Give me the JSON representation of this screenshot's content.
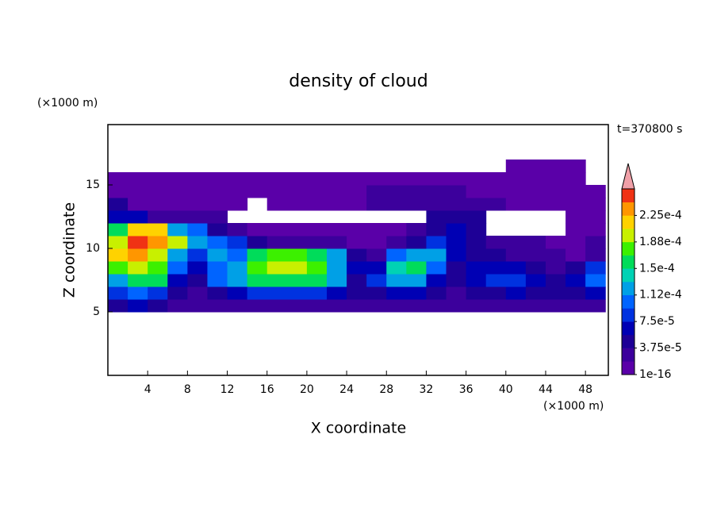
{
  "chart_data": {
    "type": "contour",
    "title": "density of cloud",
    "x_label": "X coordinate",
    "y_label": "Z coordinate",
    "x_unit": "(×1000 m)",
    "y_unit": "(×1000 m)",
    "annotation": "t=370800 s",
    "xlim": [
      0,
      50.3
    ],
    "ylim": [
      0,
      19.75
    ],
    "xticks": [
      4,
      8,
      12,
      16,
      20,
      24,
      28,
      32,
      36,
      40,
      44,
      48
    ],
    "yticks": [
      5,
      10,
      15
    ],
    "x": [
      1,
      3,
      5,
      7,
      9,
      11,
      13,
      15,
      17,
      19,
      21,
      23,
      25,
      27,
      29,
      31,
      33,
      35,
      37,
      39,
      41,
      43,
      45,
      47,
      49
    ],
    "z": [
      5.5,
      6.5,
      7.5,
      8.5,
      9.5,
      10.5,
      11.5,
      12.5,
      13.5,
      14.5,
      15.5,
      16.5
    ],
    "field": [
      [
        5e-05,
        6e-05,
        5e-05,
        2e-05,
        2e-05,
        2e-05,
        3e-05,
        2e-05,
        2e-05,
        2e-05,
        2e-05,
        2e-05,
        2e-05,
        2e-05,
        2e-05,
        2e-05,
        2e-05,
        2e-05,
        2e-05,
        2e-05,
        3e-05,
        3e-05,
        3e-05,
        3e-05,
        3e-05
      ],
      [
        9e-05,
        0.0001,
        9e-05,
        4e-05,
        3e-05,
        5e-05,
        6e-05,
        8e-05,
        9e-05,
        9e-05,
        8e-05,
        7e-05,
        4e-05,
        5e-05,
        7e-05,
        7e-05,
        4e-05,
        3e-05,
        4e-05,
        5e-05,
        6e-05,
        5e-05,
        4e-05,
        5e-05,
        6e-05
      ],
      [
        0.00013,
        0.00016,
        0.00015,
        6e-05,
        5e-05,
        0.0001,
        0.00013,
        0.00015,
        0.00016,
        0.00016,
        0.00015,
        0.00012,
        5e-05,
        8e-05,
        0.00013,
        0.00012,
        7e-05,
        4e-05,
        6e-05,
        8e-05,
        9e-05,
        7e-05,
        4e-05,
        7e-05,
        0.00011
      ],
      [
        0.00018,
        0.0002,
        0.00018,
        0.0001,
        6e-05,
        0.00011,
        0.00012,
        0.00017,
        0.00019,
        0.0002,
        0.00018,
        0.00013,
        6e-05,
        7e-05,
        0.00014,
        0.00015,
        0.0001,
        5e-05,
        6e-05,
        7e-05,
        6e-05,
        4e-05,
        3e-05,
        5e-05,
        8e-05
      ],
      [
        0.00022,
        0.00023,
        0.0002,
        0.00013,
        9e-05,
        0.00012,
        0.0001,
        0.00015,
        0.00017,
        0.00017,
        0.00016,
        0.00012,
        5e-05,
        3e-05,
        0.0001,
        0.00013,
        0.00012,
        6e-05,
        4e-05,
        5e-05,
        3e-05,
        2e-05,
        3e-05,
        1e-05,
        3e-05
      ],
      [
        0.0002,
        0.00025,
        0.00023,
        0.00019,
        0.00013,
        0.00011,
        8e-05,
        5e-05,
        3e-05,
        2e-05,
        2e-05,
        2e-05,
        1e-05,
        1e-05,
        2e-05,
        4e-05,
        8e-05,
        6e-05,
        5e-05,
        3e-05,
        3e-05,
        2e-05,
        1e-05,
        1e-05,
        2e-05
      ],
      [
        0.00015,
        0.00022,
        0.00022,
        0.00012,
        0.0001,
        5e-05,
        3e-05,
        1e-05,
        1e-05,
        1e-05,
        1e-05,
        1e-05,
        1e-05,
        1e-05,
        1e-05,
        2e-05,
        5e-05,
        6e-05,
        4e-05,
        null,
        null,
        null,
        null,
        1e-05,
        1e-05
      ],
      [
        6e-05,
        6e-05,
        2e-05,
        2e-05,
        2e-05,
        2e-05,
        null,
        null,
        null,
        null,
        null,
        null,
        null,
        null,
        null,
        null,
        4e-05,
        4e-05,
        4e-05,
        null,
        null,
        null,
        null,
        1e-05,
        1e-05
      ],
      [
        4e-05,
        1e-05,
        1e-05,
        1e-05,
        1e-05,
        1e-05,
        1e-05,
        null,
        1e-05,
        1e-05,
        1e-05,
        1e-05,
        1e-05,
        3e-05,
        3e-05,
        3e-05,
        3e-05,
        3e-05,
        3e-05,
        2e-05,
        1e-05,
        1e-05,
        1e-05,
        1e-05,
        1e-05
      ],
      [
        1e-05,
        1e-05,
        1e-05,
        1e-05,
        1e-05,
        1e-05,
        1e-05,
        1e-05,
        1e-05,
        1e-05,
        1e-05,
        1e-05,
        1e-05,
        3e-05,
        3e-05,
        2e-05,
        3e-05,
        3e-05,
        1e-05,
        1e-05,
        1e-05,
        1e-05,
        1e-05,
        1e-05,
        1e-05
      ],
      [
        1e-05,
        1e-05,
        1e-05,
        1e-05,
        1e-05,
        1e-05,
        1e-05,
        1e-05,
        1e-05,
        1e-05,
        1e-05,
        1e-05,
        1e-05,
        1e-05,
        1e-05,
        1e-05,
        1e-05,
        1e-05,
        1e-05,
        1e-05,
        1e-05,
        1e-05,
        1e-05,
        1e-05,
        null
      ],
      [
        null,
        null,
        null,
        null,
        null,
        null,
        null,
        null,
        null,
        null,
        null,
        null,
        null,
        null,
        null,
        null,
        null,
        null,
        null,
        null,
        1e-05,
        1e-05,
        1e-05,
        1e-05,
        null
      ]
    ],
    "colorbar": {
      "levels": [
        1e-16,
        1.875e-05,
        3.75e-05,
        5.625e-05,
        7.5e-05,
        9.375e-05,
        0.0001125,
        0.00013125,
        0.00015,
        0.00016875,
        0.0001875,
        0.00020625,
        0.000225,
        0.00024375,
        0.0002625
      ],
      "colors": [
        "#5a00a8",
        "#3c009c",
        "#1e0096",
        "#0000b4",
        "#0032e0",
        "#0064ff",
        "#00a0e6",
        "#00d2b4",
        "#00dc5a",
        "#3cf000",
        "#c8f000",
        "#ffd200",
        "#ff9600",
        "#f03214"
      ],
      "over_color": "#f0a0a8",
      "ticks": [
        {
          "value": 1e-16,
          "label": "1e-16"
        },
        {
          "value": 3.75e-05,
          "label": "3.75e-5"
        },
        {
          "value": 7.5e-05,
          "label": "7.5e-5"
        },
        {
          "value": 0.0001125,
          "label": "1.12e-4"
        },
        {
          "value": 0.00015,
          "label": "1.5e-4"
        },
        {
          "value": 0.0001875,
          "label": "1.88e-4"
        },
        {
          "value": 0.000225,
          "label": "2.25e-4"
        }
      ]
    }
  }
}
